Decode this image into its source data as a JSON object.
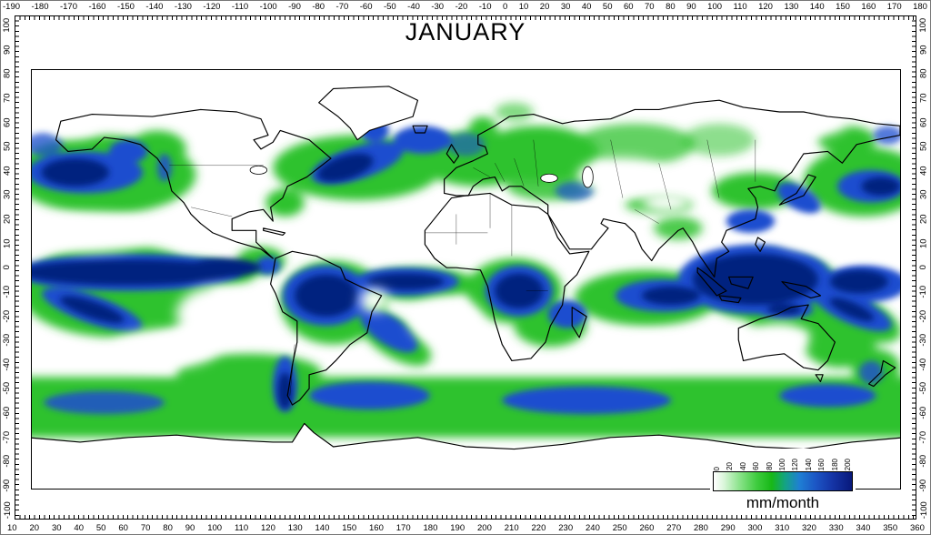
{
  "title": "JANUARY",
  "map": {
    "subject": "global-precipitation",
    "month": "January",
    "units": "mm/month",
    "scale_min": 0,
    "scale_max": 200,
    "colors": {
      "low": "#ffffff",
      "mid_green": "#2ec22e",
      "high_blue": "#1e4ecf",
      "max_navy": "#06207f"
    }
  },
  "legend": {
    "label": "mm/month",
    "ticks": [
      "0",
      "20",
      "40",
      "60",
      "80",
      "100",
      "120",
      "140",
      "160",
      "180",
      "200"
    ]
  },
  "axes": {
    "top": [
      "-190",
      "-180",
      "-170",
      "-160",
      "-150",
      "-140",
      "-130",
      "-120",
      "-110",
      "-100",
      "-90",
      "-80",
      "-70",
      "-60",
      "-50",
      "-40",
      "-30",
      "-20",
      "-10",
      "0",
      "10",
      "20",
      "30",
      "40",
      "50",
      "60",
      "70",
      "80",
      "90",
      "100",
      "110",
      "120",
      "130",
      "140",
      "150",
      "160",
      "170",
      "180"
    ],
    "bottom": [
      "10",
      "20",
      "30",
      "40",
      "50",
      "60",
      "70",
      "80",
      "90",
      "100",
      "110",
      "120",
      "130",
      "140",
      "150",
      "160",
      "170",
      "180",
      "190",
      "200",
      "210",
      "220",
      "230",
      "240",
      "250",
      "260",
      "270",
      "280",
      "290",
      "300",
      "310",
      "320",
      "330",
      "340",
      "350",
      "360"
    ],
    "left": [
      "100",
      "90",
      "80",
      "70",
      "60",
      "50",
      "40",
      "30",
      "20",
      "10",
      "0",
      "-10",
      "-20",
      "-30",
      "-40",
      "-50",
      "-60",
      "-70",
      "-80",
      "-90",
      "-100"
    ],
    "right": [
      "100",
      "90",
      "80",
      "70",
      "60",
      "50",
      "40",
      "30",
      "20",
      "10",
      "0",
      "-10",
      "-20",
      "-30",
      "-40",
      "-50",
      "-60",
      "-70",
      "-80",
      "-90",
      "-100"
    ]
  }
}
